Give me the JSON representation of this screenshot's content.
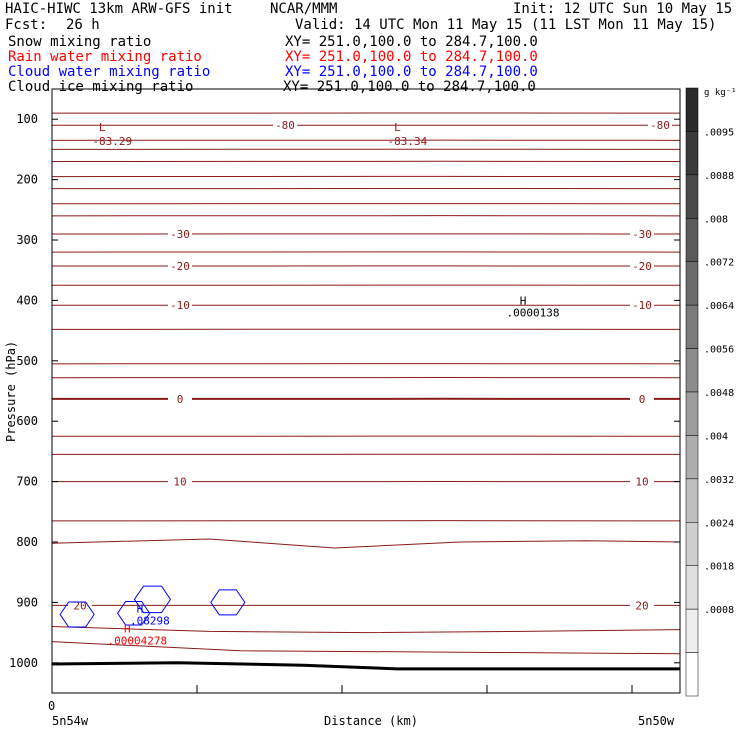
{
  "header": {
    "model": "HAIC-HIWC 13km ARW-GFS init",
    "center": "NCAR/MMM",
    "init": "Init: 12 UTC Sun 10 May 15",
    "fcst_label": "Fcst:",
    "fcst_value": "26 h",
    "valid": "Valid: 14 UTC Mon 11 May 15 (11 LST Mon 11 May 15)"
  },
  "fields": [
    {
      "name": "Snow mixing ratio",
      "xy": "XY= 251.0,100.0 to 284.7,100.0",
      "color": "#000000"
    },
    {
      "name": "Rain water mixing ratio",
      "xy": "XY= 251.0,100.0 to 284.7,100.0",
      "color": "#ff0000"
    },
    {
      "name": "Cloud water mixing ratio",
      "xy": "XY= 251.0,100.0 to 284.7,100.0",
      "color": "#0000ff"
    },
    {
      "name": "Cloud ice mixing ratio",
      "xy": "XY= 251.0,100.0 to 284.7,100.0",
      "color": "#000000"
    }
  ],
  "colorbar": {
    "units": "g kg⁻¹",
    "tick_labels": [
      ".0095",
      ".0088",
      ".008",
      ".0072",
      ".0064",
      ".0056",
      ".0048",
      ".004",
      ".0032",
      ".0024",
      ".0018",
      ".0008"
    ],
    "shades": [
      "#2b2b2b",
      "#3a3a3a",
      "#4a4a4a",
      "#5a5a5a",
      "#6b6b6b",
      "#7b7b7b",
      "#8c8c8c",
      "#9d9d9d",
      "#aeaeae",
      "#bfbfbf",
      "#cfcfcf",
      "#dfdfdf",
      "#eeeeee",
      "#ffffff"
    ]
  },
  "chart_data": {
    "type": "line",
    "xlabel": "Distance (km)",
    "ylabel": "Pressure (hPa)",
    "x_tick_labels": [
      "0"
    ],
    "x_endpoint_labels": {
      "left": "5n54w",
      "right": "5n50w"
    },
    "y_tick_values": [
      100,
      200,
      300,
      400,
      500,
      600,
      700,
      800,
      900,
      1000
    ],
    "ylim": [
      1050,
      50
    ],
    "xlim": [
      0,
      100
    ],
    "contour_color": "#8b1a1a",
    "isotherms": [
      {
        "value": -80,
        "label": "-80",
        "pressure": 110
      },
      {
        "value": -30,
        "label": "-30",
        "pressure": 290
      },
      {
        "value": -20,
        "label": "-20",
        "pressure": 343
      },
      {
        "value": -10,
        "label": "-10",
        "pressure": 408
      },
      {
        "value": 0,
        "label": "0",
        "pressure": 563
      },
      {
        "value": 10,
        "label": "10",
        "pressure": 700
      },
      {
        "value": 20,
        "label": "20",
        "pressure": 905
      }
    ],
    "unlabeled_isotherm_pressures": [
      90,
      135,
      150,
      170,
      195,
      215,
      240,
      260,
      320,
      375,
      448,
      505,
      528,
      625,
      655,
      765
    ],
    "surface_line_1000": [
      [
        0,
        1002
      ],
      [
        20,
        1000
      ],
      [
        40,
        1004
      ],
      [
        55,
        1010
      ],
      [
        100,
        1010
      ]
    ],
    "isotherm_800": [
      [
        0,
        802
      ],
      [
        25,
        795
      ],
      [
        45,
        810
      ],
      [
        65,
        800
      ],
      [
        85,
        798
      ],
      [
        100,
        800
      ]
    ],
    "isotherm_945": [
      [
        0,
        940
      ],
      [
        25,
        948
      ],
      [
        50,
        950
      ],
      [
        75,
        948
      ],
      [
        100,
        945
      ]
    ],
    "isotherm_975": [
      [
        0,
        965
      ],
      [
        30,
        980
      ],
      [
        100,
        985
      ]
    ],
    "temperature_minima": [
      {
        "marker": "L",
        "value": "-83.29",
        "x": 8,
        "pressure": 90
      },
      {
        "marker": "L",
        "value": "-83.34",
        "x": 55,
        "pressure": 90
      }
    ],
    "snow_maximum": {
      "marker": "H",
      "value": ".0000138",
      "x": 75,
      "pressure": 400
    },
    "rain_maximum": {
      "marker": "H",
      "value": ".00004278",
      "x": 12,
      "pressure": 940
    },
    "cloud_water_maximum": {
      "marker": "H",
      "value": ".08298",
      "x": 14,
      "pressure": 910
    }
  }
}
